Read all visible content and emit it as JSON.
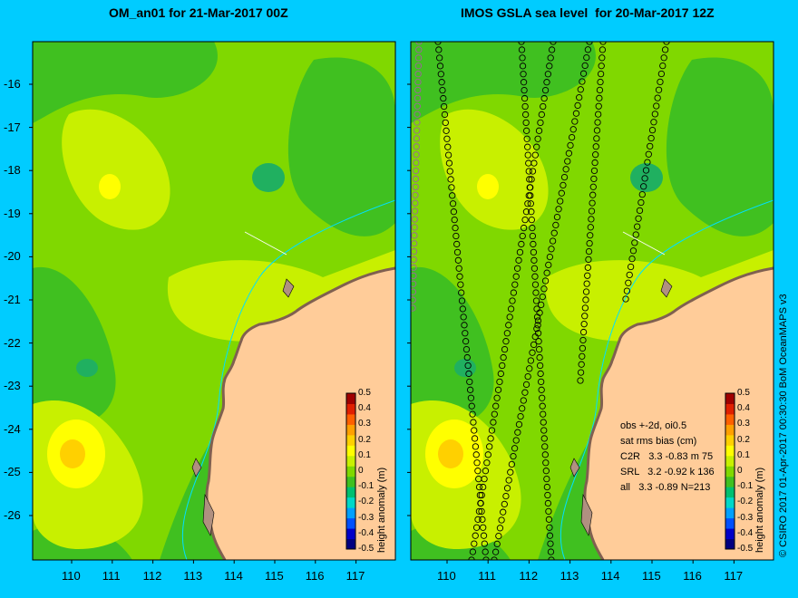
{
  "left_panel": {
    "title": "OM_an01 for 21-Mar-2017 00Z"
  },
  "right_panel": {
    "title": "IMOS GSLA sea level  for 20-Mar-2017 12Z"
  },
  "y_ticks": [
    "-16",
    "-17",
    "-18",
    "-19",
    "-20",
    "-21",
    "-22",
    "-23",
    "-24",
    "-25",
    "-26"
  ],
  "x_ticks": [
    "110",
    "111",
    "112",
    "113",
    "114",
    "115",
    "116",
    "117"
  ],
  "colorbar": {
    "label": "height anomaly (m)",
    "ticks": [
      "0.5",
      "0.4",
      "0.3",
      "0.2",
      "0.1",
      "0",
      "-0.1",
      "-0.2",
      "-0.3",
      "-0.4",
      "-0.5"
    ],
    "colors": [
      "#000080",
      "#0000c8",
      "#0050ff",
      "#00a0ff",
      "#00d8c8",
      "#00c070",
      "#40c020",
      "#80d800",
      "#c8f000",
      "#ffff00",
      "#ffd000",
      "#ffa000",
      "#ff6000",
      "#e02000",
      "#a00000"
    ]
  },
  "stats": {
    "line1": "obs +-2d, oi0.5",
    "line2": "sat rms bias (cm)",
    "rows": [
      {
        "sat": "C2R",
        "rms": "3.3",
        "bias": "-0.83",
        "extra": "m 75"
      },
      {
        "sat": "SRL",
        "rms": "3.2",
        "bias": "-0.92",
        "extra": "k 136"
      },
      {
        "sat": "all",
        "rms": "3.3",
        "bias": "-0.89",
        "extra": "N=213"
      }
    ]
  },
  "credit": "© CSIRO 2017  01-Apr-2017 00:30:30 BoM OceanMAPS v3",
  "colors": {
    "background": "#00ccff",
    "land": "#ffcc99",
    "base_sea": "#80d800"
  }
}
